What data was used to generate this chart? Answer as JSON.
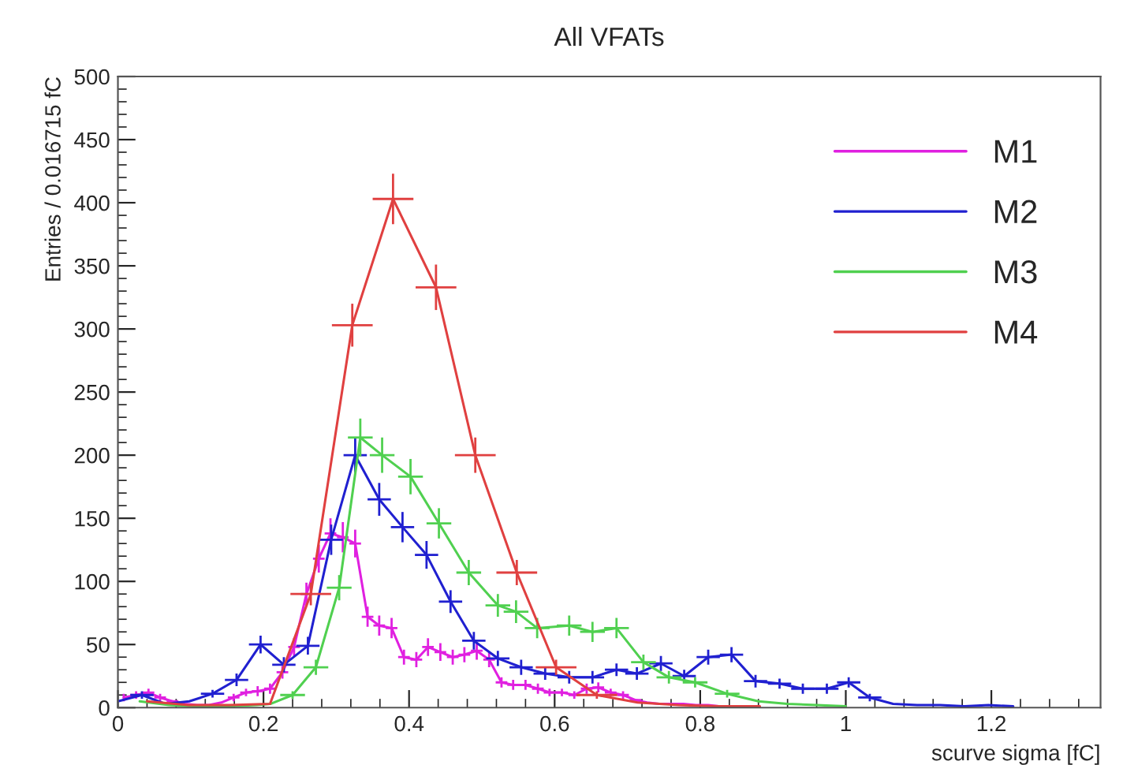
{
  "chart_data": {
    "type": "line",
    "title": "All VFATs",
    "xlabel": "scurve sigma [fC]",
    "ylabel": "Entries / 0.016715 fC",
    "xlim": [
      0,
      1.35
    ],
    "xticks": [
      0,
      0.2,
      0.4,
      0.6,
      0.8,
      1,
      1.2
    ],
    "ylim": [
      0,
      500
    ],
    "yticks": [
      0,
      50,
      100,
      150,
      200,
      250,
      300,
      350,
      400,
      450,
      500
    ],
    "grid": false,
    "legend": "top right",
    "series": [
      {
        "name": "M1",
        "color": "#e020e0",
        "x": [
          0.008,
          0.025,
          0.042,
          0.058,
          0.075,
          0.092,
          0.109,
          0.125,
          0.142,
          0.159,
          0.176,
          0.192,
          0.209,
          0.226,
          0.242,
          0.259,
          0.276,
          0.292,
          0.309,
          0.326,
          0.343,
          0.359,
          0.376,
          0.393,
          0.41,
          0.426,
          0.443,
          0.46,
          0.476,
          0.493,
          0.51,
          0.527,
          0.543,
          0.56,
          0.577,
          0.593,
          0.61,
          0.627,
          0.644,
          0.66,
          0.677,
          0.694,
          0.711,
          0.727,
          0.744,
          0.761,
          0.777,
          0.794,
          0.811,
          0.828,
          0.844
        ],
        "values": [
          8,
          10,
          12,
          8,
          5,
          3,
          2,
          2,
          4,
          8,
          12,
          13,
          15,
          28,
          48,
          90,
          118,
          138,
          135,
          130,
          72,
          65,
          63,
          40,
          38,
          48,
          44,
          40,
          42,
          45,
          38,
          20,
          18,
          18,
          15,
          12,
          12,
          10,
          15,
          16,
          12,
          10,
          6,
          4,
          3,
          3,
          3,
          2,
          2,
          1,
          1
        ],
        "errors": [
          3,
          3,
          3,
          3,
          null,
          null,
          null,
          null,
          null,
          3,
          3,
          4,
          4,
          5,
          7,
          9,
          11,
          12,
          12,
          11,
          8,
          8,
          8,
          6,
          6,
          7,
          7,
          6,
          6,
          7,
          6,
          4,
          4,
          4,
          4,
          3,
          3,
          3,
          4,
          4,
          3,
          3,
          null,
          null,
          null,
          null,
          null,
          null,
          null,
          null,
          null
        ],
        "xerrors": [
          null,
          0.008,
          0.008,
          0.008,
          0.008,
          null,
          null,
          null,
          null,
          0.008,
          0.008,
          0.008,
          0.008,
          0.008,
          0.008,
          0.008,
          0.008,
          0.008,
          0.008,
          0.008,
          0.008,
          0.008,
          0.008,
          0.008,
          0.008,
          0.008,
          0.008,
          0.008,
          0.008,
          0.008,
          0.008,
          0.008,
          0.008,
          0.008,
          0.008,
          0.008,
          0.008,
          0.008,
          0.008,
          0.008,
          0.008,
          0.008,
          0.008,
          null,
          null,
          null,
          null,
          null,
          null,
          null,
          null
        ]
      },
      {
        "name": "M2",
        "color": "#2020d0",
        "x": [
          0.0,
          0.033,
          0.065,
          0.098,
          0.13,
          0.163,
          0.196,
          0.228,
          0.261,
          0.293,
          0.326,
          0.359,
          0.391,
          0.424,
          0.457,
          0.489,
          0.522,
          0.554,
          0.587,
          0.62,
          0.652,
          0.685,
          0.713,
          0.746,
          0.778,
          0.811,
          0.843,
          0.876,
          0.909,
          0.941,
          0.974,
          1.004,
          1.033,
          1.065,
          1.098,
          1.13,
          1.163,
          1.196,
          1.23
        ],
        "values": [
          5,
          10,
          3,
          5,
          11,
          22,
          50,
          34,
          49,
          133,
          200,
          165,
          143,
          121,
          84,
          53,
          39,
          32,
          27,
          24,
          24,
          30,
          27,
          35,
          25,
          40,
          42,
          21,
          19,
          15,
          15,
          20,
          8,
          3,
          2,
          2,
          1,
          2,
          1
        ],
        "errors": [
          null,
          3,
          null,
          null,
          3,
          5,
          7,
          6,
          7,
          12,
          14,
          13,
          12,
          11,
          9,
          7,
          6,
          6,
          5,
          5,
          5,
          5,
          5,
          6,
          5,
          6,
          6,
          5,
          4,
          4,
          4,
          4,
          3,
          null,
          null,
          null,
          null,
          null,
          null
        ],
        "xerrors": [
          null,
          0.016,
          null,
          null,
          0.016,
          0.016,
          0.016,
          0.016,
          0.016,
          0.016,
          0.016,
          0.016,
          0.016,
          0.016,
          0.016,
          0.016,
          0.016,
          0.016,
          0.016,
          0.016,
          0.016,
          0.016,
          0.016,
          0.016,
          0.016,
          0.016,
          0.016,
          0.016,
          0.016,
          0.016,
          0.016,
          0.016,
          0.016,
          null,
          null,
          null,
          null,
          null,
          null
        ]
      },
      {
        "name": "M3",
        "color": "#50d050",
        "x": [
          0.03,
          0.07,
          0.11,
          0.15,
          0.19,
          0.21,
          0.24,
          0.272,
          0.304,
          0.333,
          0.363,
          0.402,
          0.441,
          0.482,
          0.522,
          0.547,
          0.576,
          0.62,
          0.652,
          0.685,
          0.722,
          0.757,
          0.793,
          0.837,
          0.88,
          0.92,
          0.96,
          1.0
        ],
        "values": [
          5,
          2,
          1,
          1,
          2,
          3,
          10,
          32,
          95,
          214,
          200,
          183,
          146,
          107,
          81,
          76,
          63,
          65,
          60,
          63,
          36,
          24,
          20,
          11,
          5,
          3,
          2,
          1
        ],
        "errors": [
          null,
          null,
          null,
          null,
          null,
          null,
          3,
          6,
          10,
          15,
          14,
          14,
          12,
          10,
          9,
          9,
          8,
          8,
          8,
          8,
          6,
          5,
          4,
          3,
          null,
          null,
          null,
          null
        ],
        "xerrors": [
          null,
          null,
          null,
          null,
          null,
          null,
          0.017,
          0.017,
          0.017,
          0.017,
          0.017,
          0.017,
          0.017,
          0.017,
          0.017,
          0.017,
          0.017,
          0.017,
          0.017,
          0.017,
          0.017,
          0.017,
          0.017,
          0.017,
          null,
          null,
          null,
          null
        ]
      },
      {
        "name": "M4",
        "color": "#e04040",
        "x": [
          0.04,
          0.097,
          0.153,
          0.209,
          0.265,
          0.322,
          0.378,
          0.437,
          0.491,
          0.548,
          0.602,
          0.658,
          0.714,
          0.77,
          0.826,
          0.882
        ],
        "values": [
          5,
          2,
          2,
          3,
          90,
          303,
          403,
          333,
          200,
          107,
          32,
          10,
          4,
          2,
          1,
          1
        ],
        "errors": [
          null,
          null,
          null,
          null,
          9,
          17,
          20,
          18,
          14,
          10,
          6,
          3,
          null,
          null,
          null,
          null
        ],
        "xerrors": [
          null,
          null,
          null,
          null,
          0.028,
          0.028,
          0.028,
          0.028,
          0.028,
          0.028,
          0.028,
          0.028,
          null,
          null,
          null,
          null
        ]
      }
    ]
  }
}
